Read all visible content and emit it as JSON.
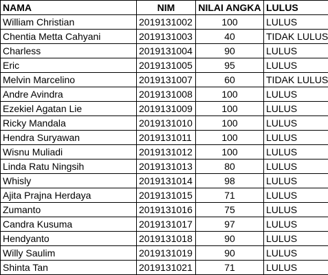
{
  "table": {
    "headers": {
      "nama": "NAMA",
      "nim": "NIM",
      "nilai": "NILAI ANGKA",
      "lulus": "LULUS"
    },
    "rows": [
      {
        "nama": "William Christian",
        "nim": "2019131002",
        "nilai": "100",
        "lulus": "LULUS"
      },
      {
        "nama": "Chentia Metta Cahyani",
        "nim": "2019131003",
        "nilai": "40",
        "lulus": "TIDAK LULUS"
      },
      {
        "nama": "Charless",
        "nim": "2019131004",
        "nilai": "90",
        "lulus": "LULUS"
      },
      {
        "nama": "Eric",
        "nim": "2019131005",
        "nilai": "95",
        "lulus": "LULUS"
      },
      {
        "nama": "Melvin Marcelino",
        "nim": "2019131007",
        "nilai": "60",
        "lulus": "TIDAK LULUS"
      },
      {
        "nama": "Andre Avindra",
        "nim": "2019131008",
        "nilai": "100",
        "lulus": "LULUS"
      },
      {
        "nama": "Ezekiel Agatan Lie",
        "nim": "2019131009",
        "nilai": "100",
        "lulus": "LULUS"
      },
      {
        "nama": "Ricky Mandala",
        "nim": "2019131010",
        "nilai": "100",
        "lulus": "LULUS"
      },
      {
        "nama": "Hendra Suryawan",
        "nim": "2019131011",
        "nilai": "100",
        "lulus": "LULUS"
      },
      {
        "nama": "Wisnu Muliadi",
        "nim": "2019131012",
        "nilai": "100",
        "lulus": "LULUS"
      },
      {
        "nama": "Linda Ratu Ningsih",
        "nim": "2019131013",
        "nilai": "80",
        "lulus": "LULUS"
      },
      {
        "nama": "Whisly",
        "nim": "2019131014",
        "nilai": "98",
        "lulus": "LULUS"
      },
      {
        "nama": "Ajita Prajna Herdaya",
        "nim": "2019131015",
        "nilai": "71",
        "lulus": "LULUS"
      },
      {
        "nama": "Zumanto",
        "nim": "2019131016",
        "nilai": "75",
        "lulus": "LULUS"
      },
      {
        "nama": "Candra Kusuma",
        "nim": "2019131017",
        "nilai": "97",
        "lulus": "LULUS"
      },
      {
        "nama": "Hendyanto",
        "nim": "2019131018",
        "nilai": "90",
        "lulus": "LULUS"
      },
      {
        "nama": "Willy Saulim",
        "nim": "2019131019",
        "nilai": "90",
        "lulus": "LULUS"
      },
      {
        "nama": "Shinta Tan",
        "nim": "2019131021",
        "nilai": "71",
        "lulus": "LULUS"
      }
    ]
  }
}
